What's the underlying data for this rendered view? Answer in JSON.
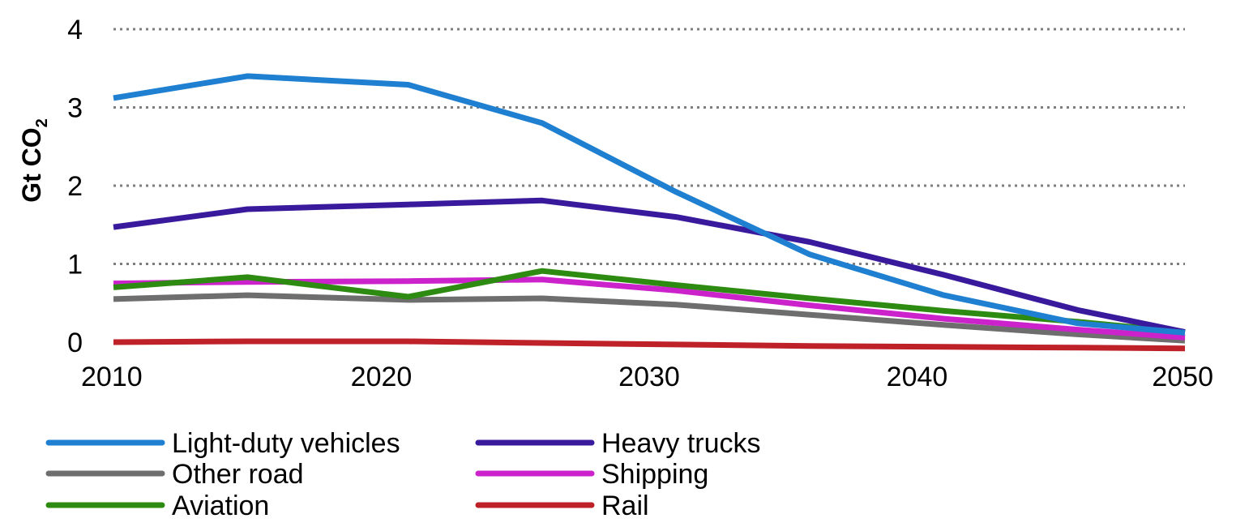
{
  "chart_data": {
    "type": "line",
    "title": "",
    "xlabel": "",
    "ylabel": "Gt CO",
    "ylabel_subscript": "2",
    "xlim": [
      2010,
      2050
    ],
    "ylim": [
      0,
      4
    ],
    "x_ticks": [
      2010,
      2020,
      2030,
      2040,
      2050
    ],
    "y_ticks": [
      0,
      1,
      2,
      3,
      4
    ],
    "grid": "horizontal-dotted",
    "legend_position": "bottom",
    "series": [
      {
        "name": "Light-duty vehicles",
        "color": "#1f7fd0",
        "x": [
          2010,
          2015,
          2021,
          2026,
          2031,
          2036,
          2041,
          2046,
          2050
        ],
        "y": [
          3.12,
          3.4,
          3.29,
          2.8,
          1.92,
          1.12,
          0.6,
          0.24,
          0.12
        ]
      },
      {
        "name": "Heavy trucks",
        "color": "#3a1a9c",
        "x": [
          2010,
          2015,
          2021,
          2026,
          2031,
          2036,
          2041,
          2046,
          2050
        ],
        "y": [
          1.47,
          1.7,
          1.76,
          1.81,
          1.6,
          1.28,
          0.86,
          0.41,
          0.13
        ]
      },
      {
        "name": "Other road",
        "color": "#6e6e6e",
        "x": [
          2010,
          2015,
          2021,
          2026,
          2031,
          2036,
          2041,
          2046,
          2050
        ],
        "y": [
          0.55,
          0.6,
          0.54,
          0.56,
          0.48,
          0.35,
          0.22,
          0.1,
          0.02
        ]
      },
      {
        "name": "Shipping",
        "color": "#cc22cc",
        "x": [
          2010,
          2015,
          2021,
          2026,
          2031,
          2036,
          2041,
          2046,
          2050
        ],
        "y": [
          0.75,
          0.77,
          0.78,
          0.8,
          0.66,
          0.47,
          0.3,
          0.16,
          0.06
        ]
      },
      {
        "name": "Aviation",
        "color": "#2e8b12",
        "x": [
          2010,
          2015,
          2021,
          2026,
          2031,
          2036,
          2041,
          2046,
          2050
        ],
        "y": [
          0.7,
          0.83,
          0.58,
          0.91,
          0.73,
          0.56,
          0.4,
          0.26,
          0.13
        ]
      },
      {
        "name": "Rail",
        "color": "#bf2128",
        "x": [
          2010,
          2015,
          2021,
          2026,
          2031,
          2036,
          2041,
          2046,
          2050
        ],
        "y": [
          0.0,
          0.01,
          0.01,
          -0.01,
          -0.03,
          -0.05,
          -0.06,
          -0.07,
          -0.08
        ]
      }
    ]
  }
}
